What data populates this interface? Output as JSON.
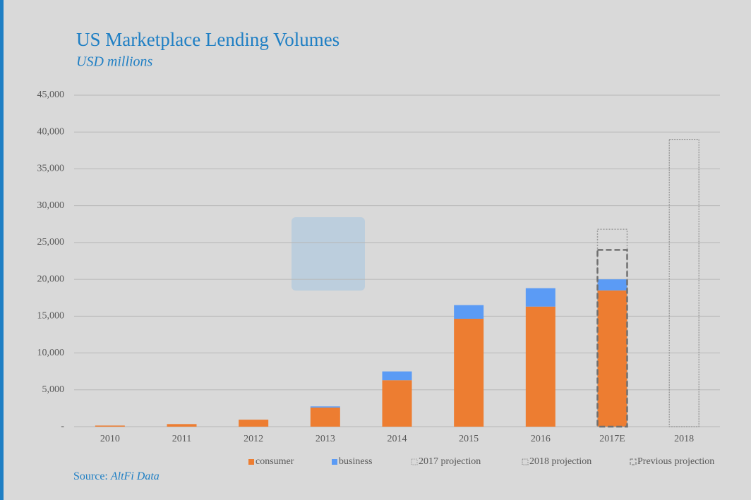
{
  "chart_data": {
    "type": "bar",
    "title": "US Marketplace Lending Volumes",
    "subtitle": "USD millions",
    "source_label": "Source:",
    "source": "AltFi Data",
    "categories": [
      "2010",
      "2011",
      "2012",
      "2013",
      "2014",
      "2015",
      "2016",
      "2017E",
      "2018"
    ],
    "series": [
      {
        "name": "consumer",
        "color": "#ed7d31",
        "style": "solid",
        "stacked": true,
        "values": [
          150,
          350,
          950,
          2600,
          6300,
          14650,
          16300,
          18500,
          null
        ]
      },
      {
        "name": "business",
        "color": "#5b9bf5",
        "style": "solid",
        "stacked": true,
        "values": [
          null,
          null,
          null,
          150,
          1200,
          1850,
          2500,
          1500,
          null
        ]
      },
      {
        "name": "2017 projection",
        "color": "#9a9a9a",
        "style": "dotted",
        "stacked": false,
        "values": [
          null,
          null,
          null,
          null,
          null,
          null,
          null,
          26800,
          null
        ]
      },
      {
        "name": "2018 projection",
        "color": "#808080",
        "style": "fine-dotted",
        "stacked": false,
        "values": [
          null,
          null,
          null,
          null,
          null,
          null,
          null,
          null,
          39000
        ]
      },
      {
        "name": "Previous projection",
        "color": "#707070",
        "style": "dashed",
        "stacked": false,
        "values": [
          null,
          null,
          null,
          null,
          null,
          null,
          null,
          24000,
          null
        ]
      }
    ],
    "ylim": [
      0,
      45000
    ],
    "yticks": [
      {
        "value": 0,
        "label": "-"
      },
      {
        "value": 5000,
        "label": "5,000"
      },
      {
        "value": 10000,
        "label": "10,000"
      },
      {
        "value": 15000,
        "label": "15,000"
      },
      {
        "value": 20000,
        "label": "20,000"
      },
      {
        "value": 25000,
        "label": "25,000"
      },
      {
        "value": 30000,
        "label": "30,000"
      },
      {
        "value": 35000,
        "label": "35,000"
      },
      {
        "value": 40000,
        "label": "40,000"
      },
      {
        "value": 45000,
        "label": "45,000"
      }
    ],
    "grid": true,
    "legend": "bottom"
  }
}
